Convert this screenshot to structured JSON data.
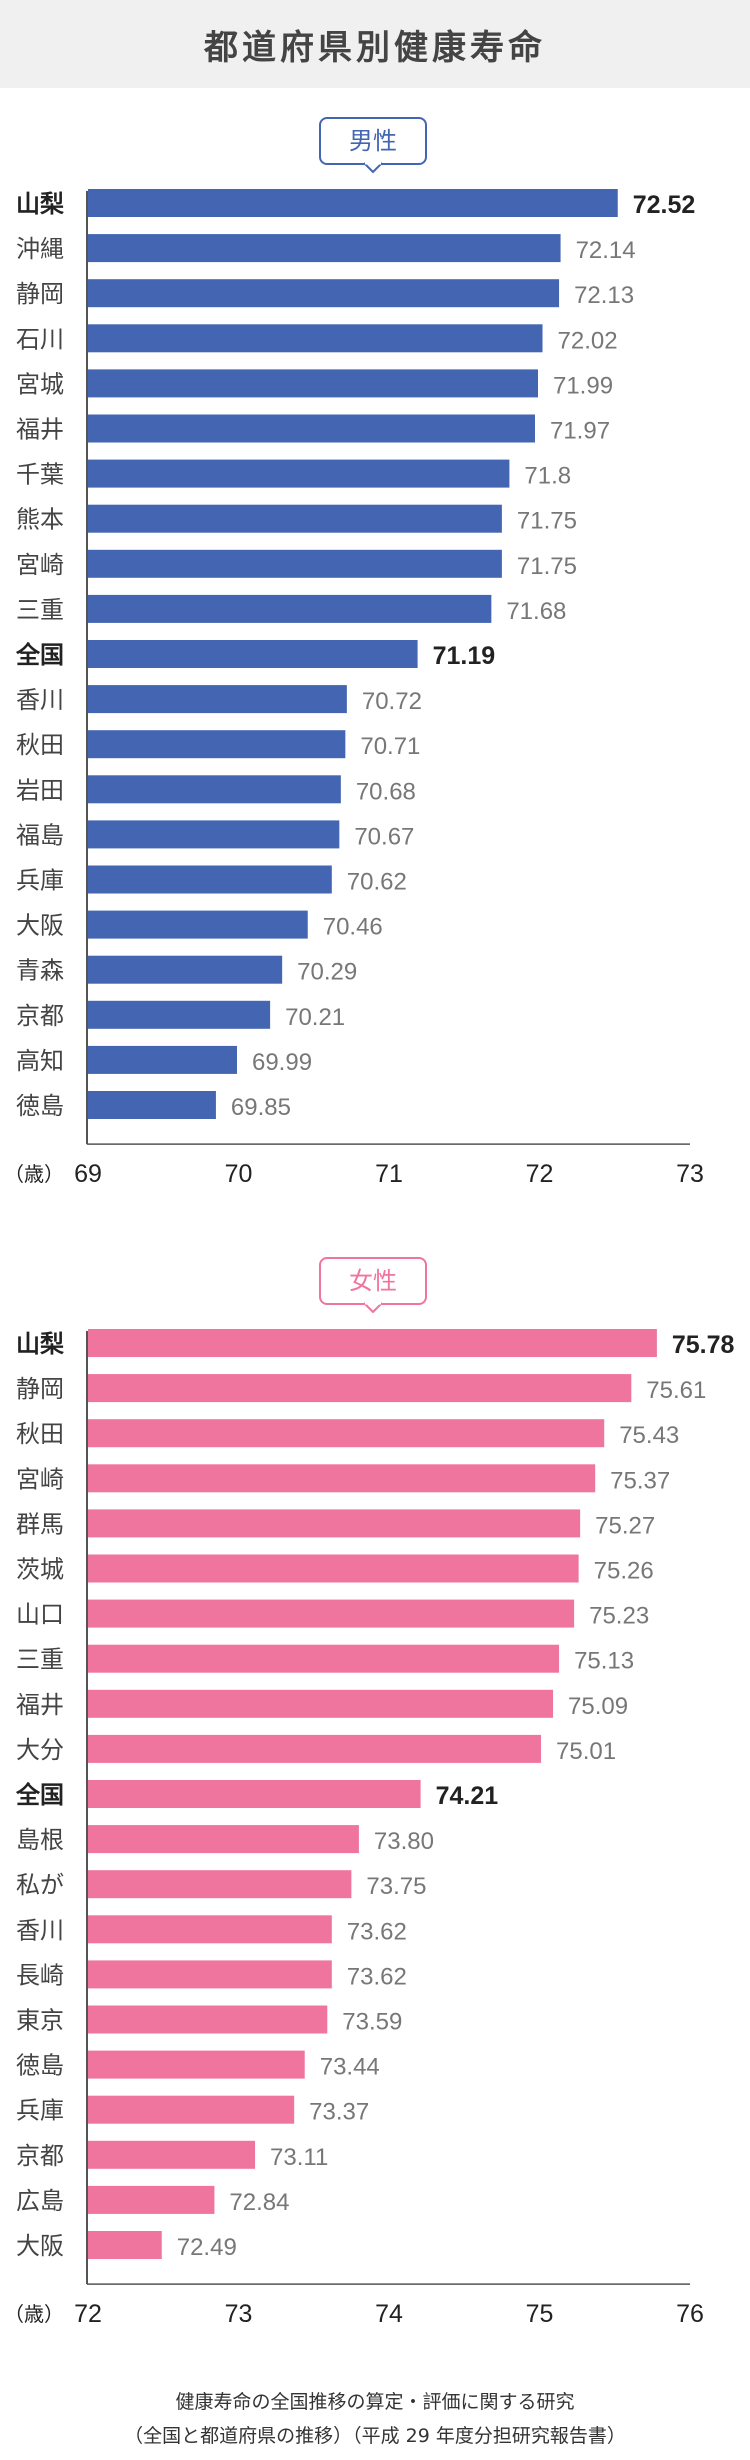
{
  "header": {
    "title": "都道府県別健康寿命"
  },
  "chart_data": [
    {
      "type": "bar",
      "orientation": "horizontal",
      "badge": "男性",
      "color": "#4365b2",
      "xlabel": "（歳）",
      "xlim": [
        69,
        73
      ],
      "xticks": [
        "69",
        "70",
        "71",
        "72",
        "73"
      ],
      "highlight": [
        "山梨",
        "全国"
      ],
      "categories": [
        "山梨",
        "沖縄",
        "静岡",
        "石川",
        "宮城",
        "福井",
        "千葉",
        "熊本",
        "宮崎",
        "三重",
        "全国",
        "香川",
        "秋田",
        "岩田",
        "福島",
        "兵庫",
        "大阪",
        "青森",
        "京都",
        "高知",
        "徳島"
      ],
      "values": [
        72.52,
        72.14,
        72.13,
        72.02,
        71.99,
        71.97,
        71.8,
        71.75,
        71.75,
        71.68,
        71.19,
        70.72,
        70.71,
        70.68,
        70.67,
        70.62,
        70.46,
        70.29,
        70.21,
        69.99,
        69.85
      ],
      "labels": [
        "72.52",
        "72.14",
        "72.13",
        "72.02",
        "71.99",
        "71.97",
        "71.8",
        "71.75",
        "71.75",
        "71.68",
        "71.19",
        "70.72",
        "70.71",
        "70.68",
        "70.67",
        "70.62",
        "70.46",
        "70.29",
        "70.21",
        "69.99",
        "69.85"
      ]
    },
    {
      "type": "bar",
      "orientation": "horizontal",
      "badge": "女性",
      "color": "#ef759e",
      "xlabel": "（歳）",
      "xlim": [
        72,
        76
      ],
      "xticks": [
        "72",
        "73",
        "74",
        "75",
        "76"
      ],
      "highlight": [
        "山梨",
        "全国"
      ],
      "categories": [
        "山梨",
        "静岡",
        "秋田",
        "宮崎",
        "群馬",
        "茨城",
        "山口",
        "三重",
        "福井",
        "大分",
        "全国",
        "島根",
        "私が",
        "香川",
        "長崎",
        "東京",
        "徳島",
        "兵庫",
        "京都",
        "広島",
        "大阪"
      ],
      "values": [
        75.78,
        75.61,
        75.43,
        75.37,
        75.27,
        75.26,
        75.23,
        75.13,
        75.09,
        75.01,
        74.21,
        73.8,
        73.75,
        73.62,
        73.62,
        73.59,
        73.44,
        73.37,
        73.11,
        72.84,
        72.49
      ],
      "labels": [
        "75.78",
        "75.61",
        "75.43",
        "75.37",
        "75.27",
        "75.26",
        "75.23",
        "75.13",
        "75.09",
        "75.01",
        "74.21",
        "73.80",
        "73.75",
        "73.62",
        "73.62",
        "73.59",
        "73.44",
        "73.37",
        "73.11",
        "72.84",
        "72.49"
      ]
    }
  ],
  "source": {
    "line1": "健康寿命の全国推移の算定・評価に関する研究",
    "line2": "（全国と都道府県の推移）（平成 29 年度分担研究報告書）"
  }
}
